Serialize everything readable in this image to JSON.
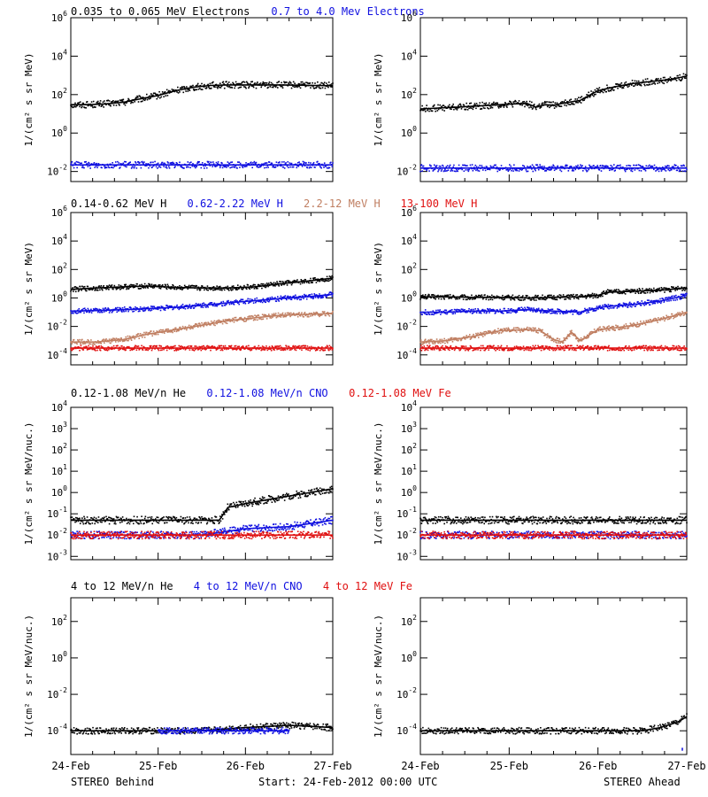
{
  "footer": {
    "left": "STEREO Behind",
    "center": "Start: 24-Feb-2012 00:00 UTC",
    "right": "STEREO Ahead"
  },
  "colors": {
    "black": "#000000",
    "blue": "#1010e0",
    "tan": "#c07f62",
    "red": "#e01010"
  },
  "chart_data": [
    {
      "type": "scatter",
      "panel": "electrons-behind",
      "header": [
        {
          "text": "0.035 to 0.065 MeV Electrons",
          "color": "#000000"
        },
        {
          "text": "0.7 to 4.0 Mev Electrons",
          "color": "#1010e0"
        }
      ],
      "ylabel": "1/(cm² s sr MeV)",
      "yscale": "log",
      "ylim": [
        0.003,
        1000000
      ],
      "yticks": [
        "10^6",
        "10^4",
        "10^2",
        "10^0",
        "10^-2"
      ],
      "xlim": [
        0,
        3
      ],
      "xticks": [],
      "series": [
        {
          "color": "#000000",
          "x": [
            0,
            0.2,
            0.4,
            0.6,
            0.8,
            1.0,
            1.2,
            1.4,
            1.6,
            1.8,
            2.0,
            2.2,
            2.4,
            2.6,
            2.8,
            3.0
          ],
          "y": [
            30,
            30,
            33,
            40,
            60,
            90,
            160,
            240,
            300,
            320,
            320,
            320,
            320,
            310,
            300,
            290
          ]
        },
        {
          "color": "#1010e0",
          "x": [
            0,
            0.5,
            1.0,
            1.5,
            2.0,
            2.5,
            3.0
          ],
          "y": [
            0.022,
            0.022,
            0.022,
            0.022,
            0.022,
            0.022,
            0.022
          ]
        }
      ]
    },
    {
      "type": "scatter",
      "panel": "electrons-ahead",
      "header": [],
      "ylabel": "1/(cm² s sr MeV)",
      "yscale": "log",
      "ylim": [
        0.003,
        1000000
      ],
      "yticks": [
        "10^6",
        "10^4",
        "10^2",
        "10^0",
        "10^-2"
      ],
      "xlim": [
        0,
        3
      ],
      "xticks": [],
      "series": [
        {
          "color": "#000000",
          "x": [
            0,
            0.2,
            0.4,
            0.6,
            0.8,
            1.0,
            1.2,
            1.3,
            1.4,
            1.5,
            1.6,
            1.8,
            1.9,
            2.0,
            2.2,
            2.4,
            2.6,
            2.8,
            3.0
          ],
          "y": [
            18,
            20,
            22,
            25,
            28,
            32,
            35,
            22,
            30,
            28,
            35,
            50,
            90,
            160,
            260,
            380,
            480,
            600,
            900
          ]
        },
        {
          "color": "#1010e0",
          "x": [
            0,
            0.5,
            1.0,
            1.5,
            2.0,
            2.5,
            3.0
          ],
          "y": [
            0.015,
            0.015,
            0.015,
            0.015,
            0.015,
            0.015,
            0.015
          ]
        }
      ]
    },
    {
      "type": "scatter",
      "panel": "protons-behind",
      "header": [
        {
          "text": "0.14-0.62 MeV H",
          "color": "#000000"
        },
        {
          "text": "0.62-2.22 MeV H",
          "color": "#1010e0"
        },
        {
          "text": "2.2-12 MeV H",
          "color": "#c07f62"
        },
        {
          "text": "13-100 MeV H",
          "color": "#e01010"
        }
      ],
      "ylabel": "1/(cm² s sr MeV)",
      "yscale": "log",
      "ylim": [
        2e-05,
        1000000
      ],
      "yticks": [
        "10^6",
        "10^4",
        "10^2",
        "10^0",
        "10^-2",
        "10^-4"
      ],
      "xlim": [
        0,
        3
      ],
      "xticks": [],
      "series": [
        {
          "color": "#000000",
          "x": [
            0,
            0.3,
            0.6,
            0.9,
            1.2,
            1.5,
            1.8,
            2.1,
            2.4,
            2.7,
            3.0
          ],
          "y": [
            4,
            5,
            6,
            7,
            5.5,
            5,
            5,
            6,
            10,
            15,
            25
          ]
        },
        {
          "color": "#1010e0",
          "x": [
            0,
            0.3,
            0.6,
            0.9,
            1.2,
            1.5,
            1.8,
            2.1,
            2.4,
            2.7,
            3.0
          ],
          "y": [
            0.12,
            0.13,
            0.15,
            0.18,
            0.22,
            0.3,
            0.45,
            0.65,
            0.9,
            1.2,
            1.8
          ]
        },
        {
          "color": "#c07f62",
          "x": [
            0,
            0.3,
            0.6,
            0.9,
            1.2,
            1.5,
            1.8,
            2.1,
            2.4,
            2.7,
            3.0
          ],
          "y": [
            0.0008,
            0.0008,
            0.0012,
            0.003,
            0.006,
            0.012,
            0.025,
            0.04,
            0.06,
            0.07,
            0.08
          ]
        },
        {
          "color": "#e01010",
          "x": [
            0,
            0.5,
            1.0,
            1.5,
            2.0,
            2.5,
            3.0
          ],
          "y": [
            0.0003,
            0.0003,
            0.0003,
            0.0003,
            0.0003,
            0.0003,
            0.0003
          ]
        }
      ]
    },
    {
      "type": "scatter",
      "panel": "protons-ahead",
      "header": [],
      "ylabel": "1/(cm² s sr MeV)",
      "yscale": "log",
      "ylim": [
        2e-05,
        1000000
      ],
      "yticks": [
        "10^6",
        "10^4",
        "10^2",
        "10^0",
        "10^-2",
        "10^-4"
      ],
      "xlim": [
        0,
        3
      ],
      "xticks": [],
      "series": [
        {
          "color": "#000000",
          "x": [
            0,
            0.3,
            0.6,
            0.9,
            1.2,
            1.5,
            1.8,
            2.0,
            2.1,
            2.4,
            2.7,
            3.0
          ],
          "y": [
            1.2,
            1.2,
            1.1,
            1.1,
            1.0,
            1.1,
            1.2,
            1.5,
            2.5,
            3.0,
            3.5,
            5
          ]
        },
        {
          "color": "#1010e0",
          "x": [
            0,
            0.3,
            0.6,
            0.9,
            1.2,
            1.5,
            1.8,
            2.0,
            2.1,
            2.4,
            2.7,
            3.0
          ],
          "y": [
            0.1,
            0.1,
            0.12,
            0.12,
            0.15,
            0.12,
            0.1,
            0.2,
            0.25,
            0.35,
            0.6,
            1.5
          ]
        },
        {
          "color": "#c07f62",
          "x": [
            0,
            0.3,
            0.6,
            0.9,
            1.2,
            1.35,
            1.5,
            1.6,
            1.7,
            1.8,
            2.0,
            2.2,
            2.4,
            2.7,
            3.0
          ],
          "y": [
            0.0008,
            0.001,
            0.002,
            0.005,
            0.006,
            0.005,
            0.0012,
            0.0008,
            0.004,
            0.001,
            0.006,
            0.008,
            0.012,
            0.03,
            0.1
          ]
        },
        {
          "color": "#e01010",
          "x": [
            0,
            0.5,
            1.0,
            1.5,
            2.0,
            2.5,
            3.0
          ],
          "y": [
            0.0003,
            0.0003,
            0.0003,
            0.0003,
            0.0003,
            0.0003,
            0.0003
          ]
        }
      ]
    },
    {
      "type": "scatter",
      "panel": "heavy-low-behind",
      "header": [
        {
          "text": "0.12-1.08 MeV/n He",
          "color": "#000000"
        },
        {
          "text": "0.12-1.08 MeV/n CNO",
          "color": "#1010e0"
        },
        {
          "text": "0.12-1.08 MeV Fe",
          "color": "#e01010"
        }
      ],
      "ylabel": "1/(cm² s sr MeV/nuc.)",
      "yscale": "log",
      "ylim": [
        0.0007,
        10000
      ],
      "yticks": [
        "10^4",
        "10^3",
        "10^2",
        "10^1",
        "10^0",
        "10^-1",
        "10^-2",
        "10^-3"
      ],
      "xlim": [
        0,
        3
      ],
      "xticks": [],
      "series": [
        {
          "color": "#000000",
          "x": [
            0,
            0.5,
            1.0,
            1.5,
            1.7,
            1.8,
            2.0,
            2.3,
            2.6,
            3.0
          ],
          "y": [
            0.05,
            0.05,
            0.05,
            0.05,
            0.05,
            0.2,
            0.3,
            0.5,
            0.8,
            1.5
          ]
        },
        {
          "color": "#1010e0",
          "x": [
            0,
            0.5,
            1.0,
            1.5,
            2.0,
            2.5,
            3.0
          ],
          "y": [
            0.01,
            0.01,
            0.01,
            0.01,
            0.02,
            0.025,
            0.05
          ]
        },
        {
          "color": "#e01010",
          "x": [
            0,
            0.5,
            1.0,
            1.5,
            2.0,
            2.5,
            3.0
          ],
          "y": [
            0.01,
            0.01,
            0.01,
            0.01,
            0.01,
            0.01,
            0.01
          ]
        }
      ]
    },
    {
      "type": "scatter",
      "panel": "heavy-low-ahead",
      "header": [],
      "ylabel": "1/(cm² s sr MeV/nuc.)",
      "yscale": "log",
      "ylim": [
        0.0007,
        10000
      ],
      "yticks": [
        "10^4",
        "10^3",
        "10^2",
        "10^1",
        "10^0",
        "10^-1",
        "10^-2",
        "10^-3"
      ],
      "xlim": [
        0,
        3
      ],
      "xticks": [],
      "series": [
        {
          "color": "#000000",
          "x": [
            0,
            0.5,
            1.0,
            1.5,
            2.0,
            2.5,
            3.0
          ],
          "y": [
            0.05,
            0.05,
            0.05,
            0.05,
            0.05,
            0.05,
            0.05
          ]
        },
        {
          "color": "#1010e0",
          "x": [
            0,
            0.5,
            1.0,
            1.5,
            2.0,
            2.5,
            3.0
          ],
          "y": [
            0.01,
            0.01,
            0.01,
            0.01,
            0.01,
            0.01,
            0.01
          ]
        },
        {
          "color": "#e01010",
          "x": [
            0,
            0.5,
            1.0,
            1.5,
            2.0,
            2.5,
            3.0
          ],
          "y": [
            0.01,
            0.01,
            0.01,
            0.01,
            0.01,
            0.01,
            0.01
          ]
        }
      ]
    },
    {
      "type": "scatter",
      "panel": "heavy-high-behind",
      "header": [
        {
          "text": "4 to 12 MeV/n He",
          "color": "#000000"
        },
        {
          "text": "4 to 12 MeV/n CNO",
          "color": "#1010e0"
        },
        {
          "text": "4 to 12 MeV Fe",
          "color": "#e01010"
        }
      ],
      "ylabel": "1/(cm² s sr MeV/nuc.)",
      "yscale": "log",
      "ylim": [
        5e-06,
        2000
      ],
      "yticks": [
        "10^2",
        "10^0",
        "10^-2",
        "10^-4"
      ],
      "xlim": [
        0,
        3
      ],
      "xticks": [
        "24-Feb",
        "25-Feb",
        "26-Feb",
        "27-Feb"
      ],
      "series": [
        {
          "color": "#000000",
          "x": [
            0,
            0.5,
            1.0,
            1.5,
            2.0,
            2.5,
            3.0
          ],
          "y": [
            0.0001,
            0.0001,
            0.0001,
            0.0001,
            0.00015,
            0.0002,
            0.00015
          ]
        },
        {
          "color": "#1010e0",
          "x": [
            1.0,
            1.5,
            2.0,
            2.5
          ],
          "y": [
            0.0001,
            0.0001,
            0.0001,
            0.0001
          ]
        }
      ]
    },
    {
      "type": "scatter",
      "panel": "heavy-high-ahead",
      "header": [],
      "ylabel": "1/(cm² s sr MeV/nuc.)",
      "yscale": "log",
      "ylim": [
        5e-06,
        2000
      ],
      "yticks": [
        "10^2",
        "10^0",
        "10^-2",
        "10^-4"
      ],
      "xlim": [
        0,
        3
      ],
      "xticks": [
        "24-Feb",
        "25-Feb",
        "26-Feb",
        "27-Feb"
      ],
      "series": [
        {
          "color": "#000000",
          "x": [
            0,
            0.5,
            1.0,
            1.5,
            2.0,
            2.5,
            2.7,
            2.9,
            3.0
          ],
          "y": [
            0.0001,
            0.0001,
            0.0001,
            0.0001,
            0.0001,
            0.0001,
            0.00015,
            0.0003,
            0.0006
          ]
        },
        {
          "color": "#1010e0",
          "x": [
            2.95
          ],
          "y": [
            1e-05
          ]
        }
      ]
    }
  ]
}
